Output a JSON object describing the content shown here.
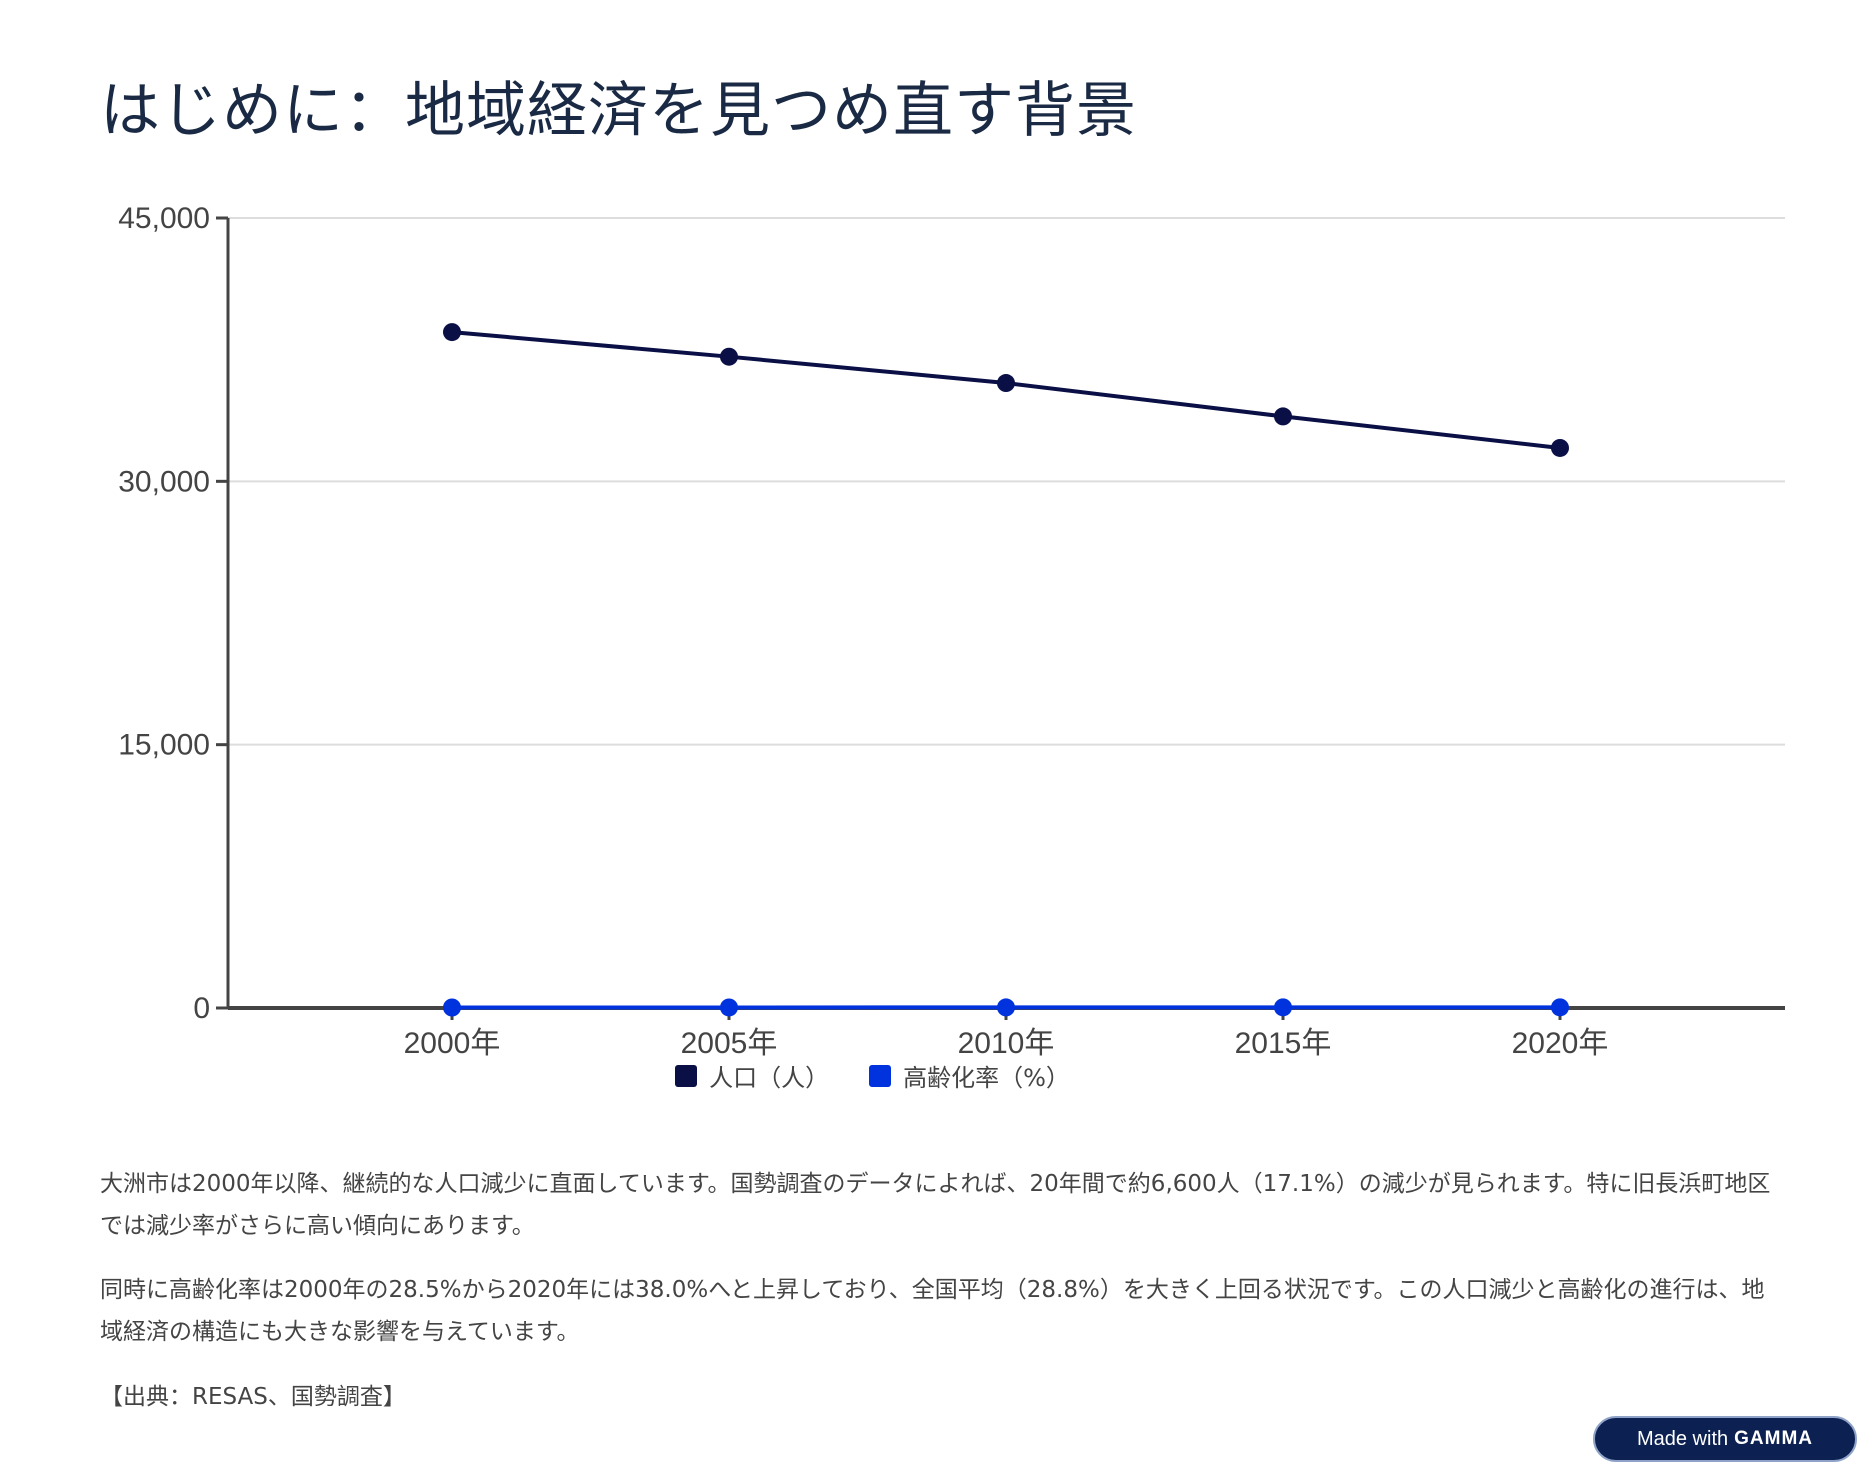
{
  "title": "はじめに：地域経済を見つめ直す背景",
  "chart_data": {
    "type": "line",
    "categories": [
      "2000年",
      "2005年",
      "2010年",
      "2015年",
      "2020年"
    ],
    "series": [
      {
        "name": "人口（人）",
        "color": "#0a0f45",
        "values": [
          38500,
          37100,
          35600,
          33700,
          31900
        ]
      },
      {
        "name": "高齢化率（%）",
        "color": "#0033dd",
        "values": [
          28.5,
          31.0,
          33.6,
          35.9,
          38.0
        ]
      }
    ],
    "yticks": [
      0,
      15000,
      30000,
      45000
    ],
    "ytick_labels": [
      "0",
      "15,000",
      "30,000",
      "45,000"
    ],
    "ylim": [
      0,
      45000
    ],
    "grid": true,
    "legend": "bottom-center"
  },
  "paragraphs": [
    "大洲市は2000年以降、継続的な人口減少に直面しています。国勢調査のデータによれば、20年間で約6,600人（17.1%）の減少が見られます。特に旧長浜町地区では減少率がさらに高い傾向にあります。",
    "同時に高齢化率は2000年の28.5%から2020年には38.0%へと上昇しており、全国平均（28.8%）を大きく上回る状況です。この人口減少と高齢化の進行は、地域経済の構造にも大きな影響を与えています。",
    "【出典：RESAS、国勢調査】"
  ],
  "badge": {
    "prefix": "Made with",
    "brand": "GAMMA"
  }
}
